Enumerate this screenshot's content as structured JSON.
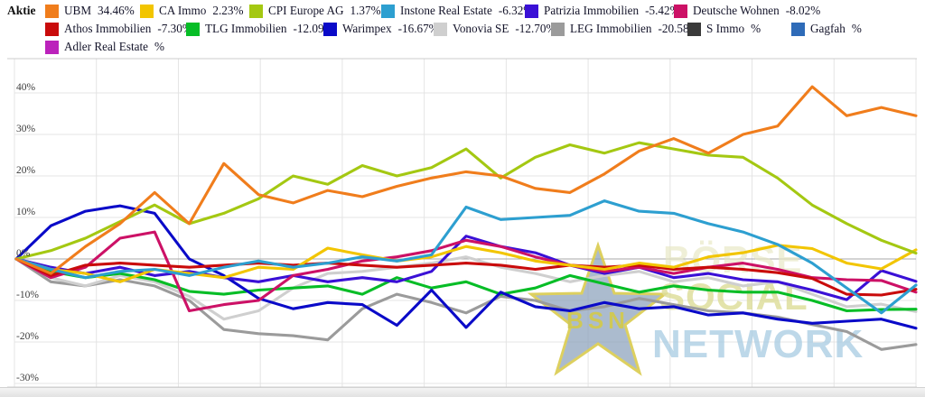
{
  "legend": {
    "title": "Aktie",
    "rows": [
      [
        {
          "id": "ubm",
          "label": "UBM",
          "pct": "34.46%",
          "color": "#f07d1c"
        },
        {
          "id": "ca-immo",
          "label": "CA Immo",
          "pct": "2.23%",
          "color": "#f2c500"
        },
        {
          "id": "cpi-europe-ag",
          "label": "CPI Europe AG",
          "pct": "1.37%",
          "color": "#a4c812"
        },
        {
          "id": "instone-real-estate",
          "label": "Instone Real Estate",
          "pct": "-6.32%",
          "color": "#2d9fd0"
        },
        {
          "id": "patrizia-immobilien",
          "label": "Patrizia Immobilien",
          "pct": "-5.42%",
          "color": "#3a10d6"
        },
        {
          "id": "deutsche-wohnen",
          "label": "Deutsche Wohnen",
          "pct": "-8.02%",
          "color": "#cc1166"
        }
      ],
      [
        {
          "id": "athos-immobilien",
          "label": "Athos Immobilien",
          "pct": "-7.30%",
          "color": "#c90b0b"
        },
        {
          "id": "tlg-immobilien",
          "label": "TLG Immobilien",
          "pct": "-12.09%",
          "color": "#06bd26"
        },
        {
          "id": "warimpex",
          "label": "Warimpex",
          "pct": "-16.67%",
          "color": "#0a0ac8"
        },
        {
          "id": "vonovia-se",
          "label": "Vonovia SE",
          "pct": "-12.70%",
          "color": "#cfcfcf"
        },
        {
          "id": "leg-immobilien",
          "label": "LEG Immobilien",
          "pct": "-20.58%",
          "color": "#9b9b9b"
        },
        {
          "id": "s-immo",
          "label": "S Immo",
          "pct": "%",
          "color": "#3a3a3a"
        },
        {
          "id": "gagfah",
          "label": "Gagfah",
          "pct": "%",
          "color": "#2e6bb8"
        }
      ],
      [
        {
          "id": "adler-real-estate",
          "label": "Adler Real Estate",
          "pct": "%",
          "color": "#bb22bb"
        }
      ]
    ]
  },
  "chart_data": {
    "type": "line",
    "title": "",
    "xlabel": "",
    "ylabel": "",
    "ylim": [
      -30,
      40
    ],
    "y_ticks": [
      40,
      30,
      20,
      10,
      0,
      -10,
      -20,
      -30
    ],
    "y_tick_suffix": "%",
    "grid": true,
    "x_gridline_count": 12,
    "x_axis_labels_visible": false,
    "legend_position": "top",
    "series": [
      {
        "id": "ubm",
        "name": "UBM",
        "color": "#f07d1c",
        "final_pct": 34.46,
        "z": 11,
        "values": [
          0,
          -3.5,
          3,
          8.5,
          16,
          8.5,
          23,
          15.5,
          13.5,
          16.5,
          15,
          17.5,
          19.5,
          21,
          20,
          17,
          16,
          20.5,
          26,
          29,
          25.5,
          30,
          32,
          41.5,
          34.5,
          36.5,
          34.5
        ]
      },
      {
        "id": "ca-immo",
        "name": "CA Immo",
        "color": "#f2c500",
        "final_pct": 2.23,
        "z": 8,
        "values": [
          0,
          -2.5,
          -3.5,
          -5.5,
          -2.5,
          -3.5,
          -4.5,
          -2,
          -2.5,
          2.6,
          1,
          -0.5,
          0.5,
          3,
          1.5,
          -0.5,
          -1.5,
          -2.5,
          -1,
          -2,
          0.5,
          1.5,
          3.3,
          2.5,
          -1,
          -2.4,
          2.2
        ]
      },
      {
        "id": "cpi-europe-ag",
        "name": "CPI Europe AG",
        "color": "#a4c812",
        "final_pct": 1.37,
        "z": 9,
        "values": [
          0,
          2,
          5,
          9,
          13,
          8.5,
          11,
          14.5,
          20,
          18,
          22.5,
          20,
          22,
          26.5,
          19.5,
          24.5,
          27.5,
          25.5,
          28,
          26.5,
          25,
          24.5,
          19.5,
          13,
          8.5,
          4.5,
          1.4
        ]
      },
      {
        "id": "instone-real-estate",
        "name": "Instone Real Estate",
        "color": "#2d9fd0",
        "final_pct": -6.32,
        "z": 10,
        "values": [
          0,
          -2.5,
          -4.5,
          -3,
          -2.5,
          -4,
          -2,
          -0.5,
          -2,
          -1,
          0.5,
          -0.5,
          1,
          12.5,
          9.5,
          10,
          10.5,
          14,
          11.5,
          11,
          8.5,
          6.5,
          3.5,
          -1,
          -7,
          -13,
          -6.3
        ]
      },
      {
        "id": "patrizia-immobilien",
        "name": "Patrizia Immobilien",
        "color": "#3a10d6",
        "final_pct": -5.42,
        "z": 5,
        "values": [
          0,
          -2,
          -3.5,
          -2,
          -4,
          -3,
          -4.5,
          -5.5,
          -4,
          -5.5,
          -4.5,
          -5.5,
          -3,
          5.5,
          3,
          1.5,
          -1.5,
          -3.5,
          -2,
          -4.5,
          -3.5,
          -5,
          -5.5,
          -7.5,
          -9.8,
          -2.8,
          -5.4
        ]
      },
      {
        "id": "deutsche-wohnen",
        "name": "Deutsche Wohnen",
        "color": "#cc1166",
        "final_pct": -8.02,
        "z": 6,
        "values": [
          0,
          -4.5,
          -2,
          5,
          6.5,
          -12.5,
          -11,
          -10,
          -4,
          -2.5,
          -0.5,
          0.5,
          2,
          4.5,
          3,
          0.5,
          -1.5,
          -3,
          -2,
          -3.5,
          -2,
          -1,
          -2.5,
          -4.5,
          -5,
          -5.2,
          -8
        ]
      },
      {
        "id": "athos-immobilien",
        "name": "Athos Immobilien",
        "color": "#c90b0b",
        "final_pct": -7.3,
        "z": 7,
        "values": [
          0,
          -4,
          -1.5,
          -1,
          -1.5,
          -2,
          -1.5,
          -1,
          -1.5,
          -1,
          -1.5,
          -2,
          -1.5,
          -1,
          -1.5,
          -2.5,
          -1.5,
          -2,
          -1.5,
          -2.5,
          -2,
          -2.5,
          -3.3,
          -4.7,
          -8.5,
          -8.7,
          -7.3
        ]
      },
      {
        "id": "tlg-immobilien",
        "name": "TLG Immobilien",
        "color": "#06bd26",
        "final_pct": -12.09,
        "z": 3,
        "values": [
          0,
          -3,
          -4.5,
          -3.5,
          -5,
          -7.8,
          -8.5,
          -7.5,
          -7,
          -6.5,
          -8.5,
          -4.5,
          -7,
          -5.5,
          -8.5,
          -7,
          -4,
          -6,
          -8,
          -6.5,
          -7.5,
          -8,
          -8,
          -10,
          -12.5,
          -12.2,
          -12.1
        ]
      },
      {
        "id": "warimpex",
        "name": "Warimpex",
        "color": "#0a0ac8",
        "final_pct": -16.67,
        "z": 4,
        "values": [
          0,
          8,
          11.5,
          12.8,
          11,
          0,
          -4,
          -9.5,
          -12,
          -10.5,
          -11,
          -16,
          -7.5,
          -16.5,
          -8,
          -11.5,
          -12.5,
          -10.5,
          -12,
          -11.5,
          -13.5,
          -13,
          -14.5,
          -15.5,
          -15,
          -14.5,
          -16.7
        ]
      },
      {
        "id": "vonovia-se",
        "name": "Vonovia SE",
        "color": "#cfcfcf",
        "final_pct": -12.7,
        "z": 2,
        "values": [
          0,
          -4.5,
          -6.5,
          -4,
          -5.5,
          -9,
          -14.5,
          -12.5,
          -7,
          -3.5,
          -3,
          -2,
          -1,
          0.5,
          -2,
          -3.5,
          -5.5,
          -4,
          -3,
          -5.5,
          -4.5,
          -6.5,
          -5.5,
          -8.5,
          -11.5,
          -10.9,
          -12.7
        ]
      },
      {
        "id": "leg-immobilien",
        "name": "LEG Immobilien",
        "color": "#9b9b9b",
        "final_pct": -20.58,
        "z": 1,
        "values": [
          0,
          -5.5,
          -6.5,
          -5,
          -6.5,
          -10,
          -17,
          -18,
          -18.5,
          -19.5,
          -12,
          -8.5,
          -10.5,
          -13,
          -9,
          -10,
          -12.5,
          -11.5,
          -9.5,
          -11,
          -12.5,
          -13,
          -14,
          -15.8,
          -17.5,
          -21.8,
          -20.6
        ]
      },
      {
        "id": "s-immo",
        "name": "S Immo",
        "color": "#3a3a3a",
        "final_pct": null,
        "z": 0,
        "values": []
      },
      {
        "id": "gagfah",
        "name": "Gagfah",
        "color": "#2e6bb8",
        "final_pct": null,
        "z": 0,
        "values": []
      },
      {
        "id": "adler-real-estate",
        "name": "Adler Real Estate",
        "color": "#bb22bb",
        "final_pct": null,
        "z": 0,
        "values": []
      }
    ]
  },
  "watermark": {
    "star_text": "BSN",
    "line1": "BÖRSE",
    "line2": "SOCIAL",
    "line3": "NETWORK"
  }
}
